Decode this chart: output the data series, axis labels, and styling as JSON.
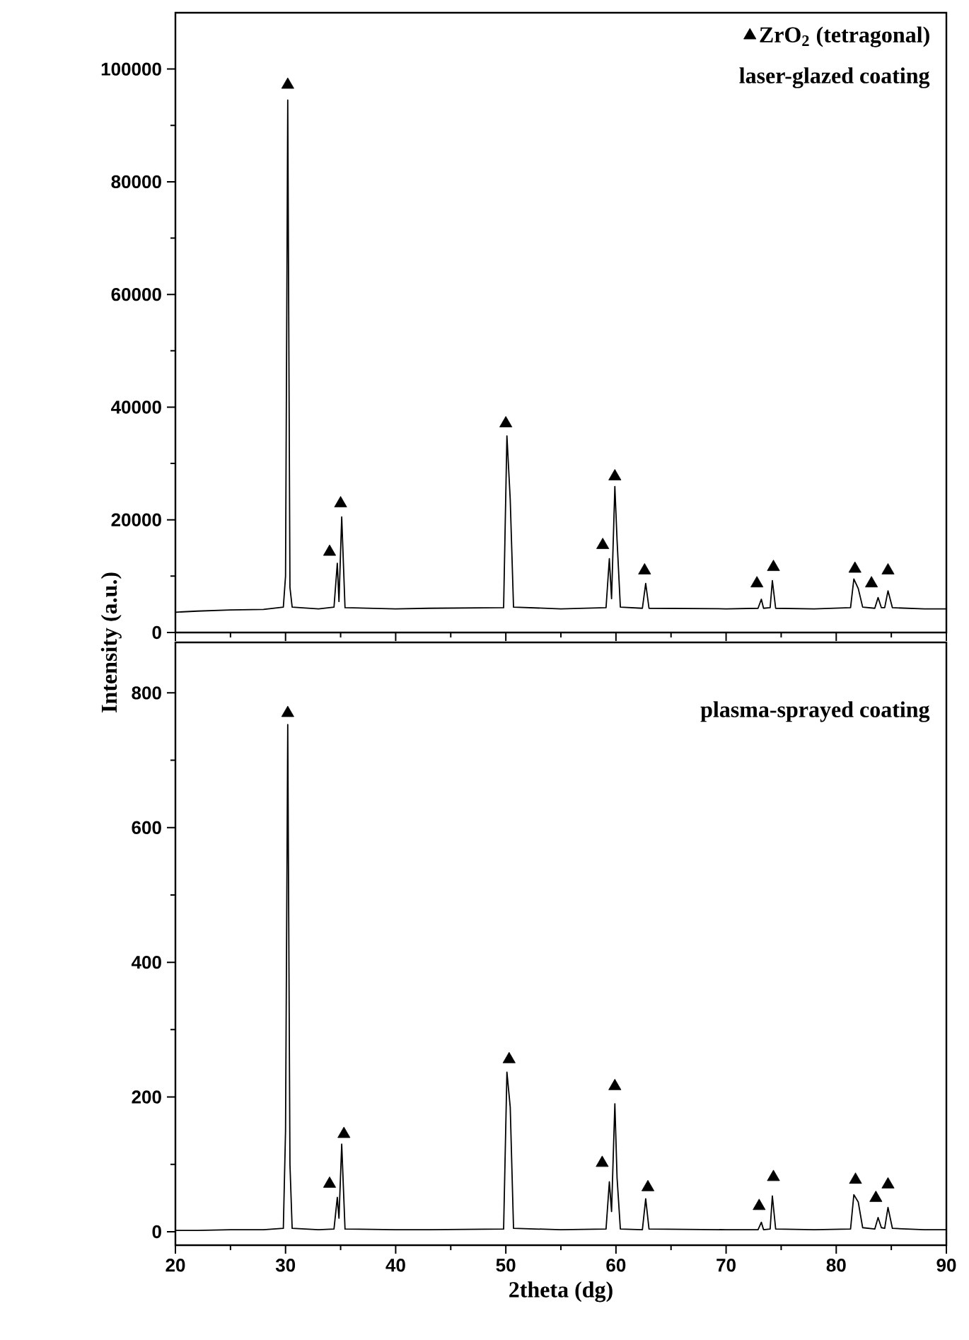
{
  "chart_data": [
    {
      "type": "line",
      "xlim": [
        20,
        90
      ],
      "ylim": [
        0,
        110000
      ],
      "xticks": [
        20,
        30,
        40,
        50,
        60,
        70,
        80,
        90
      ],
      "yticks": [
        0,
        20000,
        40000,
        60000,
        80000,
        100000
      ],
      "tick_labels": "y",
      "legend": "top right",
      "annotations": [
        "laser-glazed coating"
      ],
      "x": [
        20,
        22,
        25,
        28,
        29.8,
        30.0,
        30.2,
        30.4,
        30.6,
        33,
        34.4,
        34.7,
        34.85,
        35.1,
        35.4,
        40,
        43,
        49.8,
        50.1,
        50.4,
        50.7,
        55,
        59.1,
        59.4,
        59.6,
        59.9,
        60.1,
        60.4,
        62.4,
        62.7,
        63.0,
        70,
        72.9,
        73.2,
        73.4,
        74.0,
        74.2,
        74.5,
        78,
        81.3,
        81.6,
        82.0,
        82.4,
        83.5,
        83.8,
        84.1,
        84.4,
        84.7,
        85.1,
        88,
        90
      ],
      "series": [
        {
          "color": "#000000",
          "values": [
            3600,
            3800,
            4000,
            4100,
            4500,
            10000,
            94500,
            8000,
            4500,
            4200,
            4500,
            12300,
            5500,
            20500,
            4400,
            4200,
            4300,
            4400,
            34900,
            23600,
            4500,
            4200,
            4400,
            13100,
            6000,
            25900,
            16400,
            4500,
            4300,
            8700,
            4300,
            4200,
            4300,
            5900,
            4300,
            4400,
            9200,
            4300,
            4200,
            4400,
            9500,
            7800,
            4500,
            4300,
            6200,
            4400,
            4400,
            7400,
            4400,
            4200,
            4200
          ]
        },
        {
          "type": "scatter",
          "name": "ZrO$_{2}$ (tetragonal)",
          "color": "#000000",
          "marker": "triangle",
          "x": [
            30.2,
            34.0,
            35.0,
            50.0,
            58.8,
            59.9,
            62.6,
            72.8,
            74.3,
            81.7,
            83.2,
            84.7
          ],
          "values": [
            97200,
            14300,
            22900,
            37100,
            15500,
            27700,
            11000,
            8700,
            11600,
            11300,
            8700,
            11000
          ]
        }
      ]
    },
    {
      "type": "line",
      "xlabel": "2theta (dg)",
      "ylabel": "Intensity (a.u.)",
      "xlim": [
        20,
        90
      ],
      "ylim": [
        -20,
        875
      ],
      "xticks": [
        20,
        30,
        40,
        50,
        60,
        70,
        80,
        90
      ],
      "yticks": [
        0,
        200,
        400,
        600,
        800
      ],
      "annotations": [
        "plasma-sprayed coating"
      ],
      "x": [
        20,
        22,
        25,
        28,
        29.8,
        30.0,
        30.2,
        30.4,
        30.6,
        33,
        34.4,
        34.7,
        34.85,
        35.1,
        35.4,
        40,
        43,
        49.8,
        50.1,
        50.4,
        50.7,
        55,
        59.1,
        59.4,
        59.6,
        59.9,
        60.1,
        60.4,
        62.4,
        62.7,
        63.0,
        70,
        72.9,
        73.2,
        73.4,
        74.0,
        74.2,
        74.5,
        78,
        81.3,
        81.6,
        82.0,
        82.4,
        83.5,
        83.8,
        84.1,
        84.4,
        84.7,
        85.1,
        88,
        90
      ],
      "series": [
        {
          "color": "#000000",
          "values": [
            2,
            2,
            3,
            3,
            5,
            150,
            753,
            100,
            5,
            3,
            4,
            51,
            20,
            130,
            4,
            3,
            3,
            4,
            237,
            185,
            5,
            3,
            4,
            74,
            30,
            190,
            80,
            4,
            3,
            49,
            4,
            3,
            3,
            14,
            3,
            4,
            53,
            4,
            3,
            4,
            55,
            44,
            6,
            4,
            21,
            6,
            5,
            36,
            5,
            3,
            3
          ]
        },
        {
          "type": "scatter",
          "color": "#000000",
          "marker": "triangle",
          "x": [
            30.2,
            34.0,
            35.3,
            50.3,
            58.75,
            59.9,
            62.9,
            73.0,
            74.3,
            81.75,
            83.6,
            84.7
          ],
          "values": [
            770,
            71,
            145,
            256,
            102,
            216,
            66,
            38,
            81,
            77,
            50,
            70
          ]
        }
      ]
    }
  ]
}
